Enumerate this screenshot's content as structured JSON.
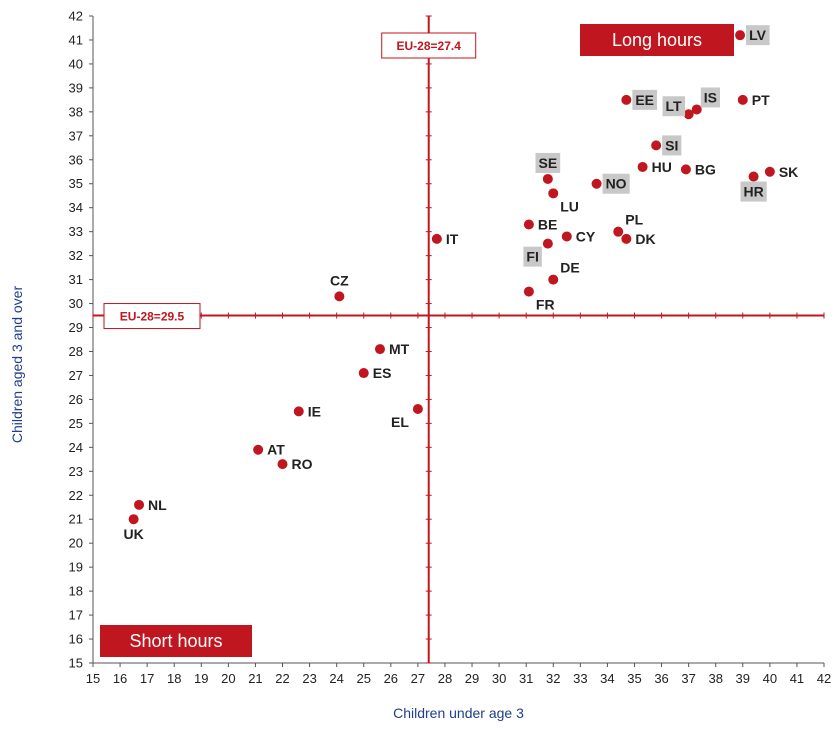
{
  "chart_data": {
    "type": "scatter",
    "xlabel": "Children under age 3",
    "ylabel": "Children aged 3 and over",
    "xlim": [
      15,
      42
    ],
    "ylim": [
      15,
      42
    ],
    "grid": false,
    "x_ticks": [
      15,
      16,
      17,
      18,
      19,
      20,
      21,
      22,
      23,
      24,
      25,
      26,
      27,
      28,
      29,
      30,
      31,
      32,
      33,
      34,
      35,
      36,
      37,
      38,
      39,
      40,
      41,
      42
    ],
    "y_ticks": [
      15,
      16,
      17,
      18,
      19,
      20,
      21,
      22,
      23,
      24,
      25,
      26,
      27,
      28,
      29,
      30,
      31,
      32,
      33,
      34,
      35,
      36,
      37,
      38,
      39,
      40,
      41,
      42
    ],
    "reference_lines": [
      {
        "axis": "x",
        "value": 27.4,
        "label": "EU-28=27.4"
      },
      {
        "axis": "y",
        "value": 29.5,
        "label": "EU-28=29.5"
      }
    ],
    "region_labels": [
      {
        "text": "Long hours",
        "position": "top-right"
      },
      {
        "text": "Short hours",
        "position": "bottom-left"
      }
    ],
    "colors": {
      "point": "#c0161f",
      "reference": "#c0161f",
      "highlight_box": "#c8c8c8"
    },
    "points": [
      {
        "label": "LV",
        "x": 38.9,
        "y": 41.2,
        "highlight": true,
        "label_pos": "right"
      },
      {
        "label": "EE",
        "x": 34.7,
        "y": 38.5,
        "highlight": true,
        "label_pos": "right"
      },
      {
        "label": "LT",
        "x": 37.0,
        "y": 37.9,
        "highlight": true,
        "label_pos": "left-up"
      },
      {
        "label": "IS",
        "x": 37.3,
        "y": 38.1,
        "highlight": true,
        "label_pos": "right-up"
      },
      {
        "label": "PT",
        "x": 39.0,
        "y": 38.5,
        "highlight": false,
        "label_pos": "right"
      },
      {
        "label": "SI",
        "x": 35.8,
        "y": 36.6,
        "highlight": true,
        "label_pos": "right"
      },
      {
        "label": "HU",
        "x": 35.3,
        "y": 35.7,
        "highlight": false,
        "label_pos": "right"
      },
      {
        "label": "BG",
        "x": 36.9,
        "y": 35.6,
        "highlight": false,
        "label_pos": "right"
      },
      {
        "label": "SK",
        "x": 40.0,
        "y": 35.5,
        "highlight": false,
        "label_pos": "right"
      },
      {
        "label": "HR",
        "x": 39.4,
        "y": 35.3,
        "highlight": true,
        "label_pos": "below"
      },
      {
        "label": "SE",
        "x": 31.8,
        "y": 35.2,
        "highlight": true,
        "label_pos": "above"
      },
      {
        "label": "NO",
        "x": 33.6,
        "y": 35.0,
        "highlight": true,
        "label_pos": "right"
      },
      {
        "label": "LU",
        "x": 32.0,
        "y": 34.6,
        "highlight": false,
        "label_pos": "right-down"
      },
      {
        "label": "BE",
        "x": 31.1,
        "y": 33.3,
        "highlight": false,
        "label_pos": "right"
      },
      {
        "label": "PL",
        "x": 34.4,
        "y": 33.0,
        "highlight": false,
        "label_pos": "right-up"
      },
      {
        "label": "CY",
        "x": 32.5,
        "y": 32.8,
        "highlight": false,
        "label_pos": "right"
      },
      {
        "label": "DK",
        "x": 34.7,
        "y": 32.7,
        "highlight": false,
        "label_pos": "right"
      },
      {
        "label": "IT",
        "x": 27.7,
        "y": 32.7,
        "highlight": false,
        "label_pos": "right"
      },
      {
        "label": "FI",
        "x": 31.8,
        "y": 32.5,
        "highlight": true,
        "label_pos": "left-down"
      },
      {
        "label": "DE",
        "x": 32.0,
        "y": 31.0,
        "highlight": false,
        "label_pos": "right-up"
      },
      {
        "label": "FR",
        "x": 31.1,
        "y": 30.5,
        "highlight": false,
        "label_pos": "right-down"
      },
      {
        "label": "CZ",
        "x": 24.1,
        "y": 30.3,
        "highlight": false,
        "label_pos": "above"
      },
      {
        "label": "MT",
        "x": 25.6,
        "y": 28.1,
        "highlight": false,
        "label_pos": "right"
      },
      {
        "label": "ES",
        "x": 25.0,
        "y": 27.1,
        "highlight": false,
        "label_pos": "right"
      },
      {
        "label": "EL",
        "x": 27.0,
        "y": 25.6,
        "highlight": false,
        "label_pos": "left-down"
      },
      {
        "label": "IE",
        "x": 22.6,
        "y": 25.5,
        "highlight": false,
        "label_pos": "right"
      },
      {
        "label": "AT",
        "x": 21.1,
        "y": 23.9,
        "highlight": false,
        "label_pos": "right"
      },
      {
        "label": "RO",
        "x": 22.0,
        "y": 23.3,
        "highlight": false,
        "label_pos": "right"
      },
      {
        "label": "NL",
        "x": 16.7,
        "y": 21.6,
        "highlight": false,
        "label_pos": "right"
      },
      {
        "label": "UK",
        "x": 16.5,
        "y": 21.0,
        "highlight": false,
        "label_pos": "below"
      }
    ]
  }
}
